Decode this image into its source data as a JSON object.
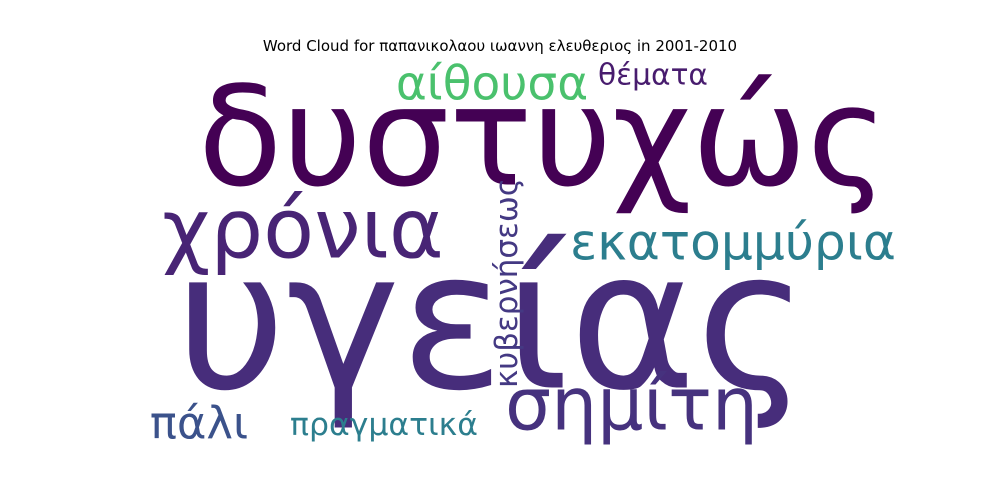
{
  "chart_data": {
    "type": "wordcloud",
    "title": "Word Cloud for παπανικολαου ιωαννη ελευθεριος in 2001-2010",
    "words": [
      {
        "text": "υγείας",
        "weight": 1.0,
        "color": "#472d7b"
      },
      {
        "text": "δυστυχώς",
        "weight": 0.72,
        "color": "#440154"
      },
      {
        "text": "χρόνια",
        "weight": 0.42,
        "color": "#482475"
      },
      {
        "text": "σημίτη",
        "weight": 0.4,
        "color": "#46327e"
      },
      {
        "text": "εκατομμύρια",
        "weight": 0.26,
        "color": "#2c7e8e"
      },
      {
        "text": "αίθουσα",
        "weight": 0.24,
        "color": "#4ac16d"
      },
      {
        "text": "πάλι",
        "weight": 0.22,
        "color": "#3b528b"
      },
      {
        "text": "κυβερνήσεως",
        "weight": 0.17,
        "color": "#443983"
      },
      {
        "text": "πραγματικά",
        "weight": 0.15,
        "color": "#2c7e8e"
      },
      {
        "text": "θέματα",
        "weight": 0.14,
        "color": "#481c6e"
      }
    ]
  }
}
